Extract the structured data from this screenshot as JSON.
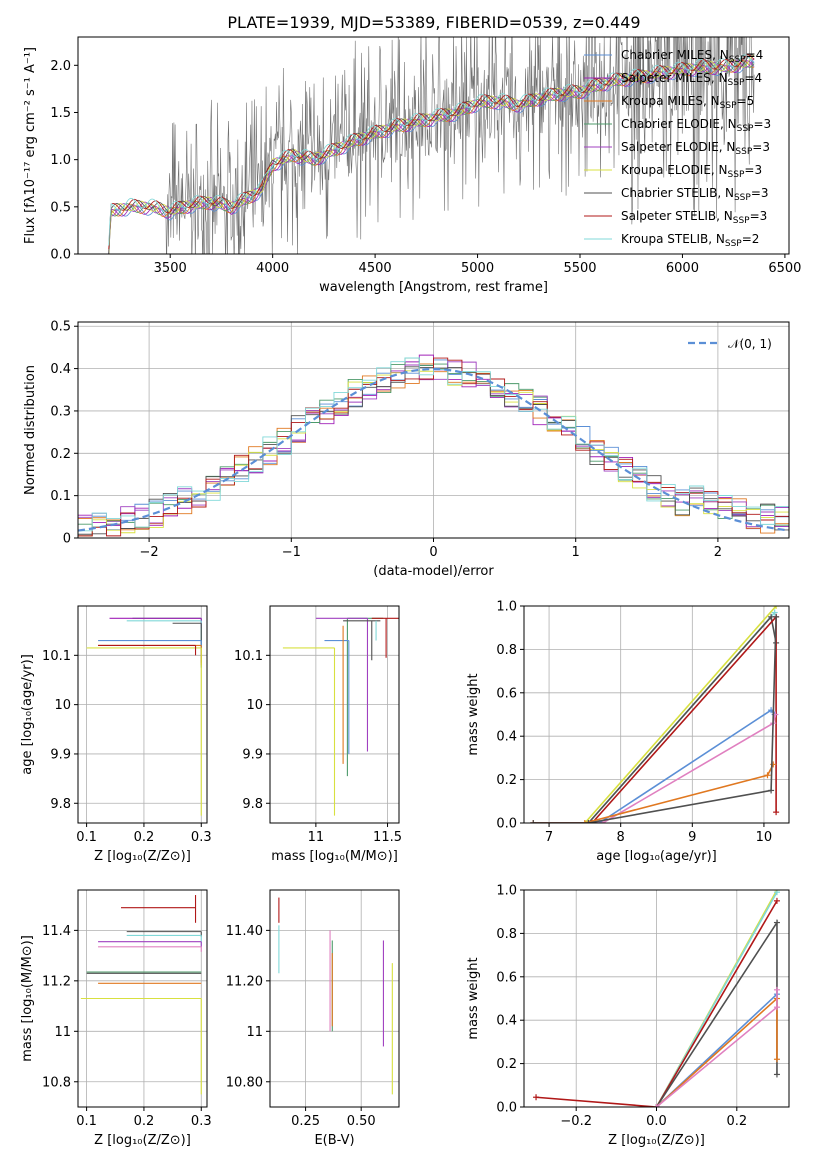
{
  "figure": {
    "title": "PLATE=1939, MJD=53389, FIBERID=0539, z=0.449",
    "colors": {
      "chabrier_miles": "#5b8fd6",
      "salpeter_miles": "#a020b8",
      "kroupa_miles": "#e07820",
      "chabrier_elodie": "#4c9a6a",
      "salpeter_elodie": "#a040c0",
      "kroupa_elodie": "#d8e040",
      "chabrier_stelib": "#505050",
      "salpeter_stelib": "#b01818",
      "kroupa_stelib": "#80d8d8",
      "data": "#707070",
      "pink": "#e080c0",
      "normal": "#5b8fd6"
    }
  },
  "chart_data": [
    {
      "id": "spectrum",
      "type": "line",
      "xlabel": "wavelength [Angstrom, rest frame]",
      "ylabel": "Flux [fλ10⁻¹⁷ erg cm⁻² s⁻¹ A⁻¹]",
      "xlim": [
        3050,
        6520
      ],
      "ylim": [
        0,
        2.3
      ],
      "xticks": [
        3500,
        4000,
        4500,
        5000,
        5500,
        6000,
        6500
      ],
      "yticks": [
        0.0,
        0.5,
        1.0,
        1.5,
        2.0
      ],
      "legend_position": "top-right",
      "legend": [
        {
          "label": "Chabrier MILES, N",
          "sub": "SSP",
          "tail": "=4",
          "color": "chabrier_miles"
        },
        {
          "label": "Salpeter MILES, N",
          "sub": "SSP",
          "tail": "=4",
          "color": "salpeter_miles"
        },
        {
          "label": "Kroupa MILES, N",
          "sub": "SSP",
          "tail": "=5",
          "color": "kroupa_miles"
        },
        {
          "label": "Chabrier ELODIE, N",
          "sub": "SSP",
          "tail": "=3",
          "color": "chabrier_elodie"
        },
        {
          "label": "Salpeter ELODIE, N",
          "sub": "SSP",
          "tail": "=3",
          "color": "salpeter_elodie"
        },
        {
          "label": "Kroupa ELODIE, N",
          "sub": "SSP",
          "tail": "=3",
          "color": "kroupa_elodie"
        },
        {
          "label": "Chabrier STELIB, N",
          "sub": "SSP",
          "tail": "=3",
          "color": "chabrier_stelib"
        },
        {
          "label": "Salpeter STELIB, N",
          "sub": "SSP",
          "tail": "=3",
          "color": "salpeter_stelib"
        },
        {
          "label": "Kroupa STELIB, N",
          "sub": "SSP",
          "tail": "=2",
          "color": "kroupa_stelib"
        }
      ],
      "model_continuum": [
        [
          3200,
          0.0
        ],
        [
          3210,
          0.45
        ],
        [
          3300,
          0.5
        ],
        [
          3400,
          0.5
        ],
        [
          3500,
          0.45
        ],
        [
          3600,
          0.52
        ],
        [
          3700,
          0.55
        ],
        [
          3800,
          0.5
        ],
        [
          3900,
          0.62
        ],
        [
          3950,
          0.7
        ],
        [
          4000,
          0.95
        ],
        [
          4100,
          1.05
        ],
        [
          4200,
          1.0
        ],
        [
          4300,
          1.1
        ],
        [
          4400,
          1.2
        ],
        [
          4500,
          1.28
        ],
        [
          4600,
          1.35
        ],
        [
          4700,
          1.4
        ],
        [
          4800,
          1.45
        ],
        [
          4900,
          1.5
        ],
        [
          5000,
          1.6
        ],
        [
          5100,
          1.62
        ],
        [
          5200,
          1.58
        ],
        [
          5300,
          1.65
        ],
        [
          5400,
          1.7
        ],
        [
          5500,
          1.72
        ],
        [
          5600,
          1.8
        ],
        [
          5700,
          1.85
        ],
        [
          5800,
          1.88
        ],
        [
          5900,
          1.92
        ],
        [
          6000,
          1.95
        ],
        [
          6100,
          1.98
        ],
        [
          6200,
          1.98
        ],
        [
          6300,
          2.02
        ],
        [
          6350,
          2.05
        ]
      ]
    },
    {
      "id": "residuals",
      "type": "histogram",
      "xlabel": "(data-model)/error",
      "ylabel": "Normed distribution",
      "xlim": [
        -2.5,
        2.5
      ],
      "ylim": [
        0,
        0.51
      ],
      "xticks": [
        -2,
        -1,
        0,
        1,
        2
      ],
      "yticks": [
        0.0,
        0.1,
        0.2,
        0.3,
        0.4,
        0.5
      ],
      "grid": true,
      "legend_position": "top-right",
      "legend": [
        {
          "label": "𝒩(0, 1)",
          "color": "normal"
        }
      ]
    },
    {
      "id": "age_vs_z",
      "type": "errorbar",
      "xlabel": "Z [log₁₀(Z/Z⊙)]",
      "ylabel": "age  [log₁₀(age/yr)]",
      "xlim": [
        0.085,
        0.31
      ],
      "ylim": [
        9.76,
        10.2
      ],
      "xticks": [
        0.1,
        0.2,
        0.3
      ],
      "yticks": [
        9.8,
        9.9,
        10.0,
        10.1
      ],
      "grid": true,
      "points": [
        {
          "x": 0.3,
          "y": 10.175,
          "xl": 0.12,
          "yl": 0.1,
          "yh": 0.0,
          "c": "chabrier_elodie"
        },
        {
          "x": 0.3,
          "y": 10.175,
          "xl": 0.16,
          "yl": 0.02,
          "yh": 0.0,
          "c": "salpeter_miles"
        },
        {
          "x": 0.3,
          "y": 10.17,
          "xl": 0.13,
          "yl": 0.07,
          "yh": 0.0,
          "c": "kroupa_stelib"
        },
        {
          "x": 0.3,
          "y": 10.165,
          "xl": 0.05,
          "yl": 0.08,
          "yh": 0.0,
          "c": "chabrier_stelib"
        },
        {
          "x": 0.3,
          "y": 10.13,
          "xl": 0.18,
          "yl": 0.03,
          "yh": 0.0,
          "c": "chabrier_miles"
        },
        {
          "x": 0.3,
          "y": 10.12,
          "xl": 0.18,
          "yl": 0.04,
          "yh": 0.0,
          "c": "kroupa_miles"
        },
        {
          "x": 0.3,
          "y": 10.115,
          "xl": 0.2,
          "yl": 0.34,
          "yh": 0.0,
          "c": "kroupa_elodie"
        },
        {
          "x": 0.29,
          "y": 10.12,
          "xl": 0.17,
          "yl": 0.02,
          "yh": 0.0,
          "c": "salpeter_stelib"
        }
      ]
    },
    {
      "id": "age_vs_mass",
      "type": "errorbar",
      "xlabel": "mass [log₁₀(M/M⊙)]",
      "ylabel": "",
      "xlim": [
        10.68,
        11.58
      ],
      "ylim": [
        9.76,
        10.2
      ],
      "xticks": [
        11.0,
        11.5
      ],
      "yticks": [
        9.8,
        9.9,
        10.0,
        10.1
      ],
      "grid": true,
      "points": [
        {
          "x": 11.22,
          "y": 10.175,
          "xl": 0.0,
          "xh": 0.25,
          "yl": 0.32,
          "yh": 0.0,
          "c": "chabrier_elodie"
        },
        {
          "x": 11.36,
          "y": 10.175,
          "xl": 0.36,
          "xh": 0.0,
          "yl": 0.27,
          "yh": 0.0,
          "c": "salpeter_elodie"
        },
        {
          "x": 11.39,
          "y": 10.17,
          "xl": 0.2,
          "xh": 0.06,
          "yl": 0.08,
          "yh": 0.0,
          "c": "chabrier_stelib"
        },
        {
          "x": 11.23,
          "y": 10.13,
          "xl": 0.17,
          "xh": 0.0,
          "yl": 0.23,
          "yh": 0.0,
          "c": "chabrier_miles"
        },
        {
          "x": 11.19,
          "y": 10.12,
          "xl": 0.0,
          "xh": 0.0,
          "yl": 0.24,
          "yh": 0.04,
          "c": "kroupa_miles"
        },
        {
          "x": 11.13,
          "y": 10.115,
          "xl": 0.36,
          "xh": 0.0,
          "yl": 0.34,
          "yh": 0.0,
          "c": "kroupa_elodie"
        },
        {
          "x": 11.49,
          "y": 10.175,
          "xl": 0.1,
          "xh": 0.1,
          "yl": 0.08,
          "yh": 0.0,
          "c": "salpeter_stelib"
        },
        {
          "x": 11.42,
          "y": 10.17,
          "xl": 0.0,
          "xh": 0.0,
          "yl": 0.04,
          "yh": 0.0,
          "c": "kroupa_stelib"
        }
      ]
    },
    {
      "id": "massweight_vs_age",
      "type": "line",
      "xlabel": "age  [log₁₀(age/yr)]",
      "ylabel": "mass weight",
      "xlim": [
        6.65,
        10.35
      ],
      "ylim": [
        0,
        1.0
      ],
      "xticks": [
        7,
        8,
        9,
        10
      ],
      "yticks": [
        0.0,
        0.2,
        0.4,
        0.6,
        0.8,
        1.0
      ],
      "grid": true,
      "series": [
        {
          "c": "kroupa_elodie",
          "pts": [
            [
              6.78,
              0.0
            ],
            [
              7.5,
              0.0
            ],
            [
              10.17,
              1.0
            ]
          ]
        },
        {
          "c": "kroupa_stelib",
          "pts": [
            [
              6.78,
              0.0
            ],
            [
              7.55,
              0.0
            ],
            [
              10.15,
              0.97
            ]
          ]
        },
        {
          "c": "chabrier_stelib",
          "pts": [
            [
              6.78,
              0.0
            ],
            [
              7.55,
              0.0
            ],
            [
              10.1,
              0.95
            ],
            [
              10.17,
              0.83
            ]
          ]
        },
        {
          "c": "salpeter_stelib",
          "pts": [
            [
              6.78,
              0.0
            ],
            [
              7.6,
              0.0
            ],
            [
              10.17,
              0.95
            ],
            [
              10.17,
              0.05
            ]
          ]
        },
        {
          "c": "chabrier_miles",
          "pts": [
            [
              6.78,
              0.0
            ],
            [
              7.7,
              0.0
            ],
            [
              10.1,
              0.52
            ],
            [
              10.15,
              0.5
            ]
          ]
        },
        {
          "c": "pink",
          "pts": [
            [
              6.78,
              0.0
            ],
            [
              7.75,
              0.0
            ],
            [
              10.13,
              0.46
            ],
            [
              10.16,
              0.5
            ]
          ]
        },
        {
          "c": "kroupa_miles",
          "pts": [
            [
              6.78,
              0.0
            ],
            [
              7.5,
              0.0
            ],
            [
              10.05,
              0.22
            ],
            [
              10.13,
              0.27
            ]
          ]
        },
        {
          "c": "chabrier_stelib",
          "pts": [
            [
              6.78,
              0.0
            ],
            [
              7.55,
              0.0
            ],
            [
              10.1,
              0.15
            ],
            [
              10.17,
              0.95
            ]
          ]
        }
      ]
    },
    {
      "id": "mass_vs_z",
      "type": "errorbar",
      "xlabel": "Z [log₁₀(Z/Z⊙)]",
      "ylabel": "mass [log₁₀(M/M⊙)]",
      "xlim": [
        0.085,
        0.31
      ],
      "ylim": [
        10.7,
        11.56
      ],
      "xticks": [
        0.1,
        0.2,
        0.3
      ],
      "yticks": [
        10.8,
        11.0,
        11.2,
        11.4
      ],
      "grid": true,
      "points": [
        {
          "x": 0.29,
          "y": 11.49,
          "xl": 0.13,
          "yl": 0.06,
          "yh": 0.05,
          "c": "salpeter_stelib"
        },
        {
          "x": 0.3,
          "y": 11.395,
          "xl": 0.13,
          "yl": 0.02,
          "yh": 0.0,
          "c": "chabrier_stelib"
        },
        {
          "x": 0.3,
          "y": 11.38,
          "xl": 0.13,
          "yl": 0.04,
          "yh": 0.0,
          "c": "kroupa_stelib"
        },
        {
          "x": 0.3,
          "y": 11.355,
          "xl": 0.18,
          "yl": 0.02,
          "yh": 0.0,
          "c": "salpeter_elodie"
        },
        {
          "x": 0.3,
          "y": 11.335,
          "xl": 0.18,
          "yl": 0.02,
          "yh": 0.0,
          "c": "pink"
        },
        {
          "x": 0.3,
          "y": 11.235,
          "xl": 0.2,
          "yl": 0.0,
          "yh": 0.0,
          "c": "chabrier_elodie"
        },
        {
          "x": 0.3,
          "y": 11.23,
          "xl": 0.2,
          "yl": 0.0,
          "yh": 0.0,
          "c": "chabrier_stelib"
        },
        {
          "x": 0.3,
          "y": 11.19,
          "xl": 0.18,
          "yl": 0.0,
          "yh": 0.0,
          "c": "kroupa_miles"
        },
        {
          "x": 0.3,
          "y": 11.13,
          "xl": 0.21,
          "yl": 0.38,
          "yh": 0.0,
          "c": "kroupa_elodie"
        }
      ]
    },
    {
      "id": "mass_vs_ebv",
      "type": "errorbar",
      "xlabel": "E(B-V)",
      "ylabel": "",
      "xlim": [
        0.09,
        0.67
      ],
      "ylim": [
        10.7,
        11.56
      ],
      "xticks": [
        0.25,
        0.5
      ],
      "yticks": [
        10.8,
        11.0,
        11.2,
        11.4
      ],
      "grid": true,
      "points": [
        {
          "x": 0.13,
          "y": 11.49,
          "yl": 0.06,
          "yh": 0.04,
          "c": "salpeter_stelib"
        },
        {
          "x": 0.13,
          "y": 11.38,
          "yl": 0.15,
          "yh": 0.04,
          "c": "kroupa_stelib"
        },
        {
          "x": 0.36,
          "y": 11.2,
          "yl": 0.2,
          "yh": 0.2,
          "c": "pink"
        },
        {
          "x": 0.37,
          "y": 11.2,
          "yl": 0.2,
          "yh": 0.16,
          "c": "chabrier_elodie"
        },
        {
          "x": 0.37,
          "y": 11.1,
          "yl": 0.08,
          "yh": 0.21,
          "c": "kroupa_miles"
        },
        {
          "x": 0.6,
          "y": 11.15,
          "yl": 0.21,
          "yh": 0.21,
          "c": "salpeter_elodie"
        },
        {
          "x": 0.64,
          "y": 11.0,
          "yl": 0.25,
          "yh": 0.27,
          "c": "kroupa_elodie"
        }
      ]
    },
    {
      "id": "massweight_vs_z",
      "type": "line",
      "xlabel": "Z [log₁₀(Z/Z⊙)]",
      "ylabel": "mass weight",
      "xlim": [
        -0.33,
        0.33
      ],
      "ylim": [
        0,
        1.0
      ],
      "xticks": [
        -0.2,
        0.0,
        0.2
      ],
      "yticks": [
        0.0,
        0.2,
        0.4,
        0.6,
        0.8,
        1.0
      ],
      "grid": true,
      "series": [
        {
          "c": "kroupa_elodie",
          "pts": [
            [
              0.0,
              0.0
            ],
            [
              0.3,
              1.0
            ]
          ]
        },
        {
          "c": "kroupa_stelib",
          "pts": [
            [
              0.0,
              0.0
            ],
            [
              0.3,
              0.99
            ]
          ]
        },
        {
          "c": "salpeter_stelib",
          "pts": [
            [
              -0.3,
              0.045
            ],
            [
              0.0,
              0.0
            ],
            [
              0.3,
              0.95
            ]
          ]
        },
        {
          "c": "chabrier_stelib",
          "pts": [
            [
              0.0,
              0.0
            ],
            [
              0.3,
              0.85
            ],
            [
              0.3,
              0.15
            ]
          ]
        },
        {
          "c": "chabrier_miles",
          "pts": [
            [
              0.0,
              0.0
            ],
            [
              0.3,
              0.52
            ]
          ]
        },
        {
          "c": "kroupa_miles",
          "pts": [
            [
              0.0,
              0.0
            ],
            [
              0.3,
              0.5
            ],
            [
              0.3,
              0.22
            ]
          ]
        },
        {
          "c": "pink",
          "pts": [
            [
              0.0,
              0.0
            ],
            [
              0.3,
              0.46
            ],
            [
              0.3,
              0.54
            ]
          ]
        }
      ]
    }
  ]
}
